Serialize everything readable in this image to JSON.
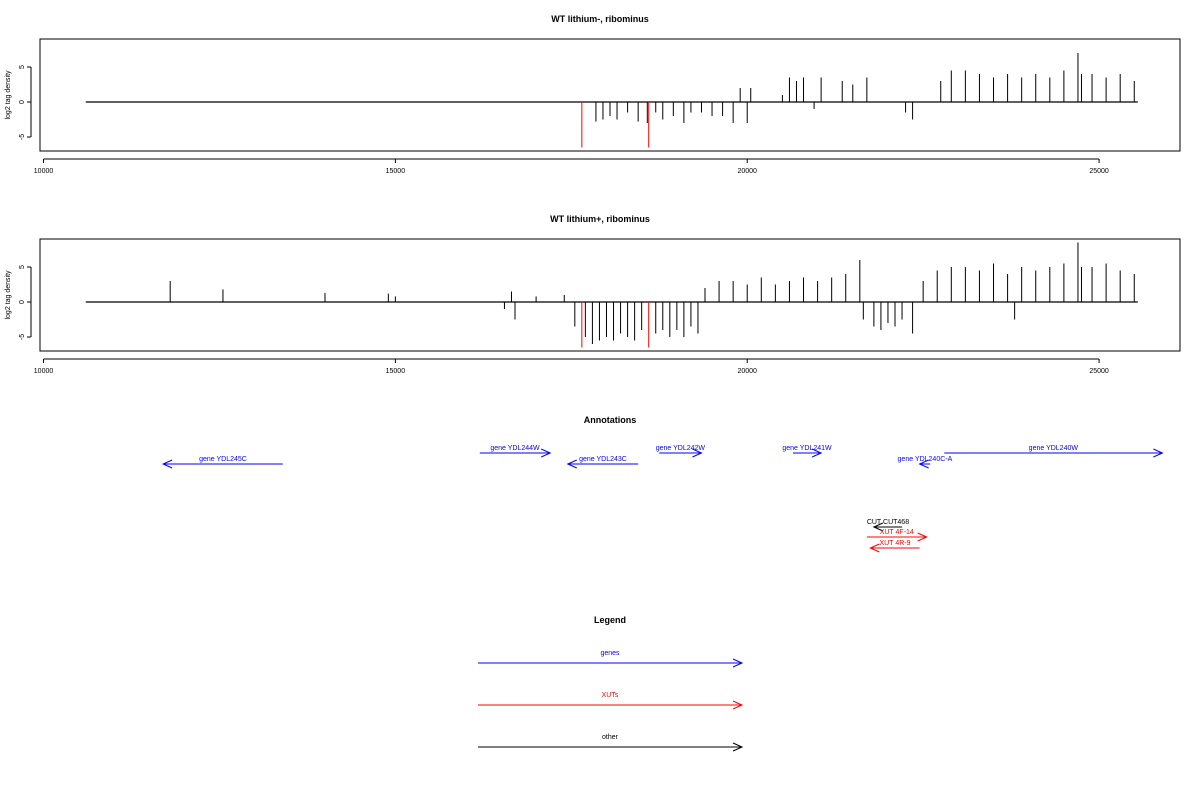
{
  "panels": [
    {
      "title": "WT lithium-, ribominus",
      "ylabel": "log2 tag density",
      "yticks": [
        "-5",
        "0",
        "5"
      ],
      "xticks": [
        "10000",
        "15000",
        "20000",
        "25000"
      ]
    },
    {
      "title": "WT lithium+, ribominus",
      "ylabel": "log2 tag density",
      "yticks": [
        "-5",
        "0",
        "5"
      ],
      "xticks": [
        "10000",
        "15000",
        "20000",
        "25000"
      ]
    }
  ],
  "annotations": {
    "title": "Annotations",
    "features": [
      {
        "label": "gene YDL245C",
        "start": 11700,
        "end": 13400,
        "strand": "-",
        "kind": "gene",
        "row": 1
      },
      {
        "label": "gene YDL244W",
        "start": 16200,
        "end": 17200,
        "strand": "+",
        "kind": "gene",
        "row": 0
      },
      {
        "label": "gene YDL243C",
        "start": 17450,
        "end": 18450,
        "strand": "-",
        "kind": "gene",
        "row": 1
      },
      {
        "label": "gene YDL242W",
        "start": 18750,
        "end": 19350,
        "strand": "+",
        "kind": "gene",
        "row": 0
      },
      {
        "label": "gene YDL241W",
        "start": 20650,
        "end": 21050,
        "strand": "+",
        "kind": "gene",
        "row": 0
      },
      {
        "label": "gene YDL240C-A",
        "start": 22450,
        "end": 22600,
        "strand": "-",
        "kind": "gene",
        "row": 1
      },
      {
        "label": "gene YDL240W",
        "start": 22800,
        "end": 25900,
        "strand": "+",
        "kind": "gene",
        "row": 0
      },
      {
        "label": "CUT CUT468",
        "start": 21800,
        "end": 22200,
        "strand": "-",
        "kind": "other",
        "row": 2
      },
      {
        "label": "XUT 4F-14",
        "start": 21700,
        "end": 22550,
        "strand": "+",
        "kind": "xut",
        "row": 3
      },
      {
        "label": "XUT 4R-9",
        "start": 21750,
        "end": 22450,
        "strand": "-",
        "kind": "xut",
        "row": 4
      }
    ]
  },
  "legend": {
    "title": "Legend",
    "items": [
      {
        "label": "genes",
        "color": "#0000ff"
      },
      {
        "label": "XUTs",
        "color": "#ff0000"
      },
      {
        "label": "other",
        "color": "#000000"
      }
    ]
  },
  "chart_data": [
    {
      "type": "bar",
      "title": "WT lithium-, ribominus",
      "xlabel": "",
      "ylabel": "log2 tag density",
      "xlim": [
        9950,
        26150
      ],
      "ylim": [
        -7,
        9
      ],
      "baseline_range": [
        10600,
        25550
      ],
      "series": [
        {
          "color": "#ff0000",
          "x": [
            17650,
            18600
          ],
          "values": [
            -6.5,
            -6.5
          ]
        },
        {
          "color": "#000000",
          "x": [
            17850,
            17950,
            18050,
            18150,
            18300,
            18450,
            18580,
            18700,
            18800,
            18950,
            19100,
            19200,
            19350,
            19500,
            19650,
            19800,
            19900,
            20000,
            20050,
            20500,
            20600,
            20700,
            20800,
            20950,
            21050,
            21350,
            21500,
            21700,
            22250,
            22350,
            22750,
            22900,
            23100,
            23300,
            23500,
            23700,
            23900,
            24100,
            24300,
            24500,
            24700,
            24750,
            24900,
            25100,
            25300,
            25500
          ],
          "values": [
            -2.8,
            -2.5,
            -2.0,
            -2.5,
            -1.5,
            -2.8,
            -3.0,
            -1.5,
            -2.5,
            -2.0,
            -3.0,
            -1.5,
            -1.5,
            -2.0,
            -2.0,
            -3.0,
            2.0,
            -3.0,
            2.0,
            1.0,
            3.5,
            3.0,
            3.5,
            -1.0,
            3.5,
            3.0,
            2.5,
            3.5,
            -1.5,
            -2.5,
            3.0,
            4.5,
            4.5,
            4.0,
            3.5,
            4.0,
            3.5,
            4.0,
            3.5,
            4.5,
            7.0,
            4.0,
            4.0,
            3.5,
            4.0,
            3.0
          ]
        }
      ]
    },
    {
      "type": "bar",
      "title": "WT lithium+, ribominus",
      "xlabel": "",
      "ylabel": "log2 tag density",
      "xlim": [
        9950,
        26150
      ],
      "ylim": [
        -7,
        9
      ],
      "baseline_range": [
        10600,
        25550
      ],
      "series": [
        {
          "color": "#ff0000",
          "x": [
            17650,
            18600
          ],
          "values": [
            -6.5,
            -6.5
          ]
        },
        {
          "color": "#000000",
          "x": [
            11800,
            12550,
            14000,
            14900,
            15000,
            16550,
            16650,
            16700,
            17000,
            17400,
            17550,
            17700,
            17800,
            17900,
            18000,
            18100,
            18200,
            18300,
            18400,
            18500,
            18700,
            18800,
            18900,
            19000,
            19100,
            19200,
            19300,
            19400,
            19600,
            19800,
            20000,
            20200,
            20400,
            20600,
            20800,
            21000,
            21200,
            21400,
            21600,
            21650,
            21800,
            21900,
            22000,
            22100,
            22200,
            22350,
            22500,
            22700,
            22900,
            23100,
            23300,
            23500,
            23700,
            23800,
            23900,
            24100,
            24300,
            24500,
            24700,
            24750,
            24900,
            25100,
            25300,
            25500
          ],
          "values": [
            3.0,
            1.8,
            1.3,
            1.2,
            0.8,
            -1.0,
            1.5,
            -2.5,
            0.8,
            1.0,
            -3.5,
            -5.0,
            -6.0,
            -5.5,
            -5.0,
            -5.5,
            -4.5,
            -5.0,
            -5.5,
            -4.0,
            -4.5,
            -4.0,
            -5.0,
            -4.0,
            -5.0,
            -3.5,
            -4.5,
            2.0,
            3.0,
            3.0,
            2.5,
            3.5,
            2.5,
            3.0,
            3.5,
            3.0,
            3.5,
            4.0,
            6.0,
            -2.5,
            -3.5,
            -4.0,
            -3.0,
            -3.5,
            -2.5,
            -4.5,
            3.0,
            4.5,
            5.0,
            5.0,
            4.5,
            5.5,
            4.0,
            -2.5,
            5.0,
            4.5,
            5.0,
            5.5,
            8.5,
            5.0,
            5.0,
            5.5,
            4.5,
            4.0
          ]
        }
      ]
    }
  ]
}
